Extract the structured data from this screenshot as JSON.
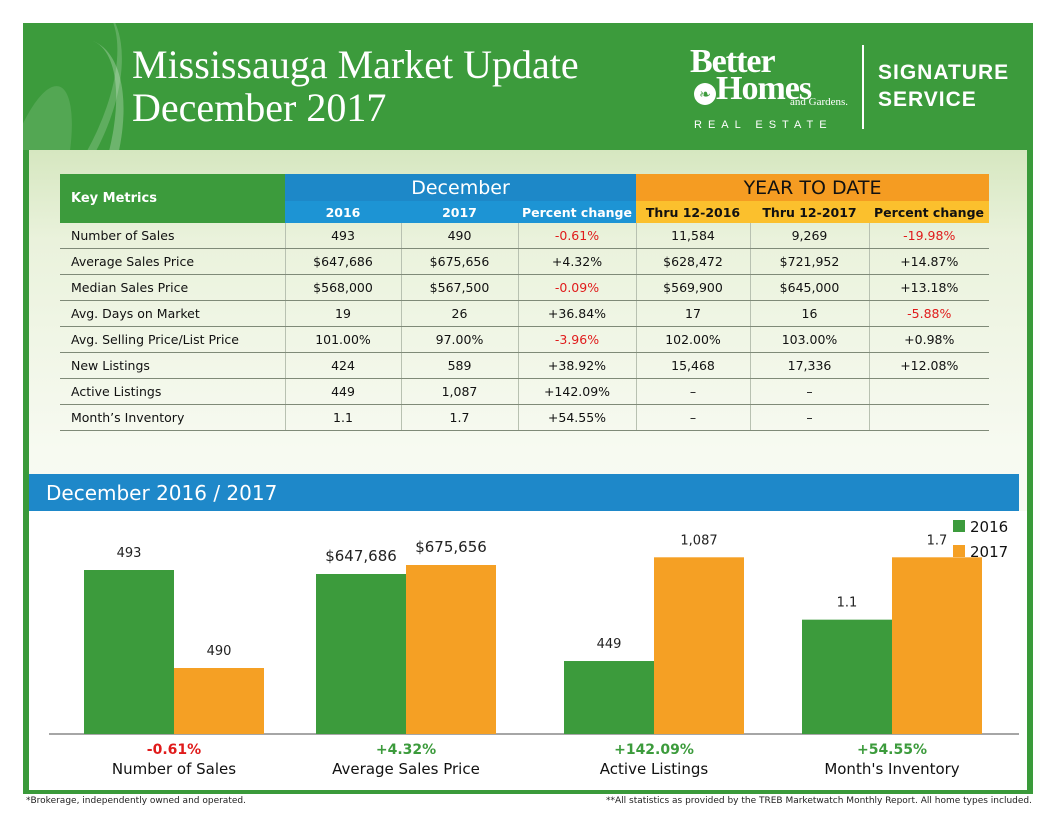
{
  "header": {
    "title_line1": "Mississauga Market Update",
    "title_line2": "December 2017",
    "brand_line1": "Better",
    "brand_line2": "Homes",
    "brand_line3": "and Gardens.",
    "brand_line4": "REAL ESTATE",
    "signature_line1": "SIGNATURE",
    "signature_line2": "SERVICE"
  },
  "table": {
    "key_metrics_label": "Key Metrics",
    "december_label": "December",
    "ytd_label": "YEAR TO DATE",
    "columns": [
      "2016",
      "2017",
      "Percent change",
      "Thru 12-2016",
      "Thru 12-2017",
      "Percent change"
    ],
    "rows": [
      {
        "label": "Number of Sales",
        "cells": [
          "493",
          "490",
          "-0.61%",
          "11,584",
          "9,269",
          "-19.98%"
        ]
      },
      {
        "label": "Average Sales Price",
        "cells": [
          "$647,686",
          "$675,656",
          "+4.32%",
          "$628,472",
          "$721,952",
          "+14.87%"
        ]
      },
      {
        "label": "Median Sales Price",
        "cells": [
          "$568,000",
          "$567,500",
          "-0.09%",
          "$569,900",
          "$645,000",
          "+13.18%"
        ]
      },
      {
        "label": "Avg. Days on Market",
        "cells": [
          "19",
          "26",
          "+36.84%",
          "17",
          "16",
          "-5.88%"
        ]
      },
      {
        "label": "Avg. Selling Price/List Price",
        "cells": [
          "101.00%",
          "97.00%",
          "-3.96%",
          "102.00%",
          "103.00%",
          "+0.98%"
        ]
      },
      {
        "label": "New Listings",
        "cells": [
          "424",
          "589",
          "+38.92%",
          "15,468",
          "17,336",
          "+12.08%"
        ]
      },
      {
        "label": "Active Listings",
        "cells": [
          "449",
          "1,087",
          "+142.09%",
          "–",
          "–",
          ""
        ]
      },
      {
        "label": "Month’s Inventory",
        "cells": [
          "1.1",
          "1.7",
          "+54.55%",
          "–",
          "–",
          ""
        ]
      }
    ]
  },
  "chart_section_title": "December 2016 / 2017",
  "chart_data": {
    "type": "bar",
    "categories": [
      "Number of Sales",
      "Average Sales Price",
      "Active Listings",
      "Month's Inventory"
    ],
    "series": [
      {
        "name": "2016",
        "values": [
          493,
          647686,
          449,
          1.1
        ],
        "labels": [
          "493",
          "$647,686",
          "449",
          "1.1"
        ]
      },
      {
        "name": "2017",
        "values": [
          490,
          675656,
          1087,
          1.7
        ],
        "labels": [
          "490",
          "$675,656",
          "1,087",
          "1.7"
        ]
      }
    ],
    "relative_heights_note": "each category scaled independently",
    "percent_changes": [
      "-0.61%",
      "+4.32%",
      "+142.09%",
      "+54.55%"
    ],
    "legend_position": "top-right",
    "colors": {
      "2016": "#3c9b3c",
      "2017": "#f5a024",
      "negative": "#e01b1b",
      "positive": "#3c9b3c"
    }
  },
  "footer": {
    "left": "*Brokerage, independently owned and operated.",
    "right": "**All statistics as provided by the TREB Marketwatch Monthly Report. All home types included."
  },
  "colors": {
    "green": "#3c9b3c",
    "blue": "#1d88c8",
    "orange": "#f59c22",
    "negative": "#e01b1b"
  }
}
